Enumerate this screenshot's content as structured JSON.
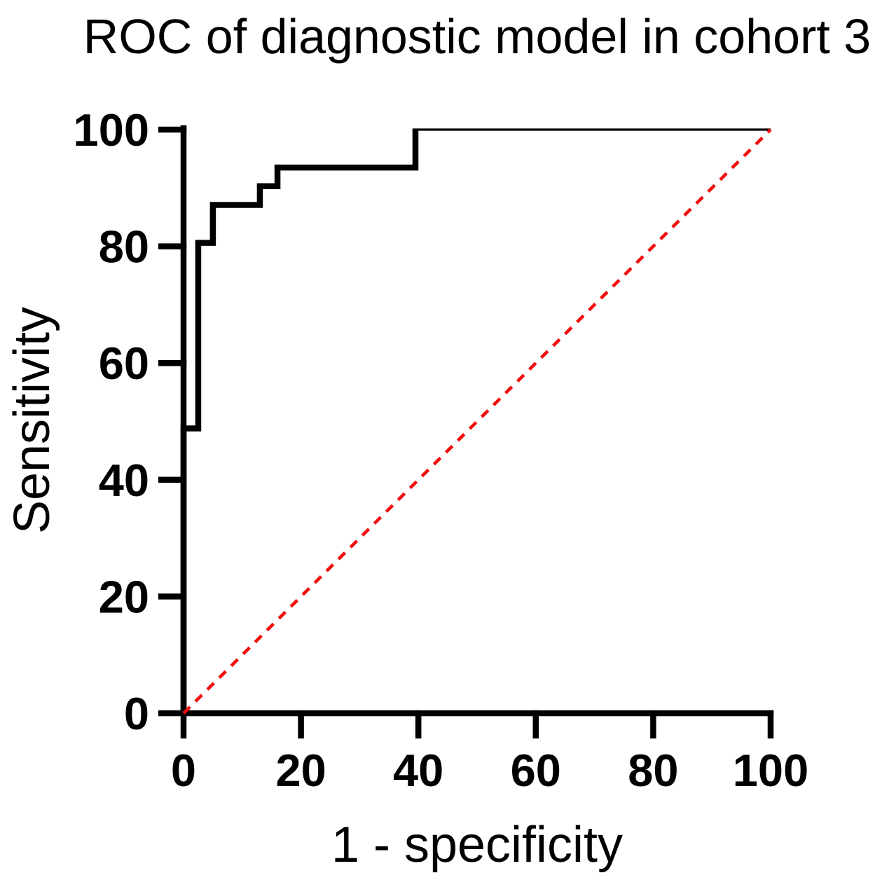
{
  "page": {
    "background": "#ffffff",
    "description": "ROC curve figure"
  },
  "chart_data": {
    "type": "line",
    "subtype": "roc-step-curve",
    "title": "ROC of diagnostic model in cohort 3",
    "xlabel": "1 - specificity",
    "ylabel": "Sensitivity",
    "xlim": [
      0,
      100
    ],
    "ylim": [
      0,
      100
    ],
    "xticks": [
      0,
      20,
      40,
      60,
      80,
      100
    ],
    "yticks": [
      0,
      20,
      40,
      60,
      80,
      100
    ],
    "grid": false,
    "legend": "none",
    "axis_color": "#000000",
    "series": [
      {
        "name": "ROC curve of diagnostic model",
        "style": "solid-step",
        "color": "#000000",
        "points": [
          [
            0,
            0
          ],
          [
            0,
            48.8
          ],
          [
            2.5,
            48.8
          ],
          [
            2.5,
            80.6
          ],
          [
            5,
            80.6
          ],
          [
            5,
            87.1
          ],
          [
            13,
            87.1
          ],
          [
            13,
            90.3
          ],
          [
            16,
            90.3
          ],
          [
            16,
            93.5
          ],
          [
            39.5,
            93.5
          ],
          [
            39.5,
            100
          ],
          [
            100,
            100
          ]
        ]
      },
      {
        "name": "Reference chance line",
        "style": "dashed",
        "color": "#f20d0d",
        "points": [
          [
            0,
            0
          ],
          [
            100,
            100
          ]
        ]
      }
    ]
  }
}
